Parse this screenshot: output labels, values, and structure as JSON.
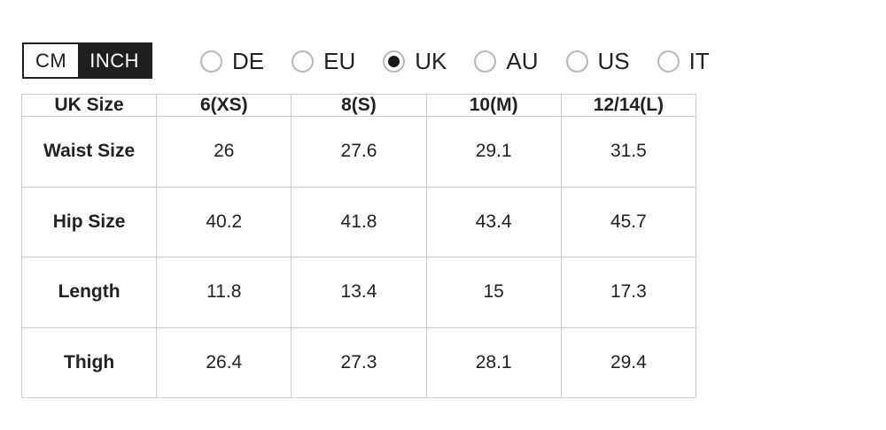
{
  "unit_toggle": {
    "options": [
      {
        "label": "CM",
        "selected": false
      },
      {
        "label": "INCH",
        "selected": true
      }
    ]
  },
  "region_selector": {
    "options": [
      {
        "label": "DE",
        "selected": false
      },
      {
        "label": "EU",
        "selected": false
      },
      {
        "label": "UK",
        "selected": true
      },
      {
        "label": "AU",
        "selected": false
      },
      {
        "label": "US",
        "selected": false
      },
      {
        "label": "IT",
        "selected": false
      }
    ]
  },
  "size_table": {
    "columns": [
      "UK Size",
      "6(XS)",
      "8(S)",
      "10(M)",
      "12/14(L)"
    ],
    "rows": [
      {
        "label": "Waist Size",
        "values": [
          "26",
          "27.6",
          "29.1",
          "31.5"
        ]
      },
      {
        "label": "Hip Size",
        "values": [
          "40.2",
          "41.8",
          "43.4",
          "45.7"
        ]
      },
      {
        "label": "Length",
        "values": [
          "11.8",
          "13.4",
          "15",
          "17.3"
        ]
      },
      {
        "label": "Thigh",
        "values": [
          "26.4",
          "27.3",
          "28.1",
          "29.4"
        ]
      }
    ]
  },
  "colors": {
    "accent_dark": "#1f1f1f",
    "table_border": "#cccccc",
    "radio_ring": "#b9b9b9",
    "text": "#222222"
  }
}
